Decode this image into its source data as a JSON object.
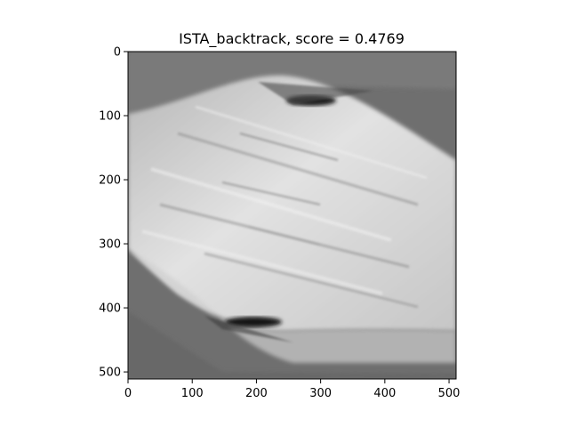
{
  "figure": {
    "title": "ISTA_backtrack, score = 0.4769"
  },
  "image": {
    "kind": "grayscale reconstruction image",
    "colormap": "gray",
    "xlim": [
      0,
      511
    ],
    "ylim": [
      511,
      0
    ]
  },
  "axes": {
    "x_ticks": [
      {
        "value": 0,
        "label": "0"
      },
      {
        "value": 100,
        "label": "100"
      },
      {
        "value": 200,
        "label": "200"
      },
      {
        "value": 300,
        "label": "300"
      },
      {
        "value": 400,
        "label": "400"
      },
      {
        "value": 500,
        "label": "500"
      }
    ],
    "y_ticks": [
      {
        "value": 0,
        "label": "0"
      },
      {
        "value": 100,
        "label": "100"
      },
      {
        "value": 200,
        "label": "200"
      },
      {
        "value": 300,
        "label": "300"
      },
      {
        "value": 400,
        "label": "400"
      },
      {
        "value": 500,
        "label": "500"
      }
    ]
  },
  "colors": {
    "background_gray": "#6e6e6e",
    "band_light": "#d8d8d8",
    "dark_spot": "#111111"
  }
}
